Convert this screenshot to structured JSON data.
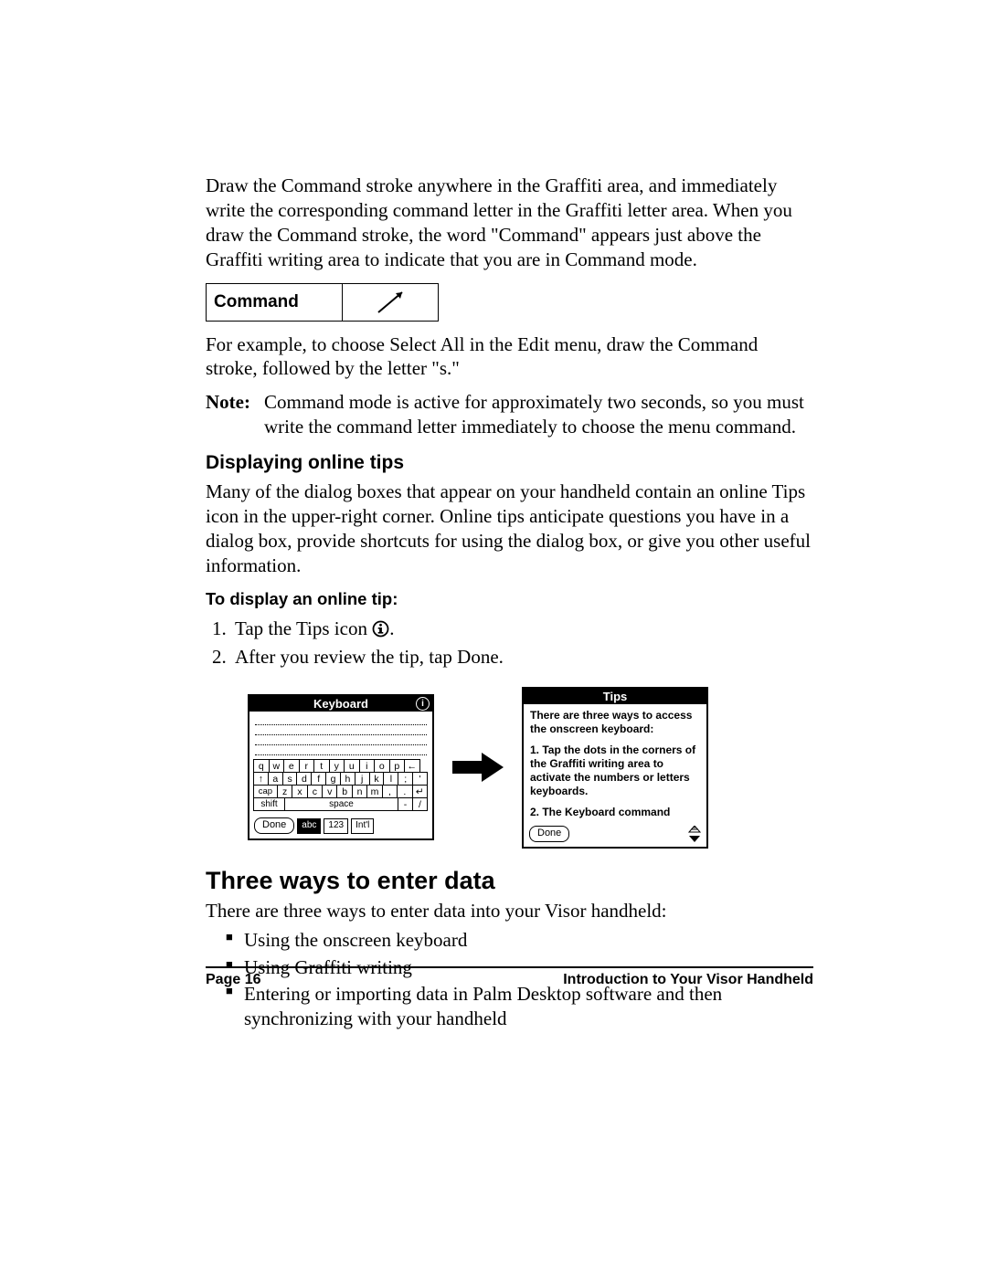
{
  "para1": "Draw the Command stroke anywhere in the Graffiti area, and immediately write the corresponding command letter in the Graffiti letter area. When you draw the Command stroke, the word \"Command\" appears just above the Graffiti writing area to indicate that you are in Command mode.",
  "command_box_label": "Command",
  "para2": "For example, to choose Select All in the Edit menu, draw the Command stroke, followed by the letter \"s.\"",
  "note_label": "Note:",
  "note_body": "Command mode is active for approximately two seconds, so you must write the command letter immediately to choose the menu command.",
  "h3_tips": "Displaying online tips",
  "para3": "Many of the dialog boxes that appear on your handheld contain an online Tips icon in the upper-right corner. Online tips anticipate questions you have in a dialog box, provide shortcuts for using the dialog box, or give you other useful information.",
  "h4_steps": "To display an online tip:",
  "step1_prefix": "Tap the Tips icon ",
  "step1_suffix": ".",
  "step2": "After you review the tip, tap Done.",
  "keyboard": {
    "title": "Keyboard",
    "row1": [
      "q",
      "w",
      "e",
      "r",
      "t",
      "y",
      "u",
      "i",
      "o",
      "p",
      "←"
    ],
    "row2_lead": "↑",
    "row2": [
      "a",
      "s",
      "d",
      "f",
      "g",
      "h",
      "j",
      "k",
      "l",
      ";",
      "'"
    ],
    "row3_lead": "cap",
    "row3": [
      "z",
      "x",
      "c",
      "v",
      "b",
      "n",
      "m",
      ",",
      ".",
      "↵"
    ],
    "row4_shift": "shift",
    "row4_space": "space",
    "row4_dash": "-",
    "row4_slash": "/",
    "done": "Done",
    "tab_abc": "abc",
    "tab_123": "123",
    "tab_intl": "Int'l"
  },
  "tips_panel": {
    "title": "Tips",
    "p1": "There are three ways to access the onscreen keyboard:",
    "p2": "1. Tap the dots in the corners of the Graffiti writing area to activate the numbers or letters keyboards.",
    "p3": "2. The Keyboard command",
    "done": "Done"
  },
  "h2_three": "Three ways to enter data",
  "para4": "There are three ways to enter data into your Visor handheld:",
  "bullets": [
    "Using the onscreen keyboard",
    "Using Graffiti writing",
    "Entering or importing data in Palm Desktop software and then synchronizing with your handheld"
  ],
  "footer_left": "Page 16",
  "footer_right": "Introduction to Your Visor Handheld"
}
